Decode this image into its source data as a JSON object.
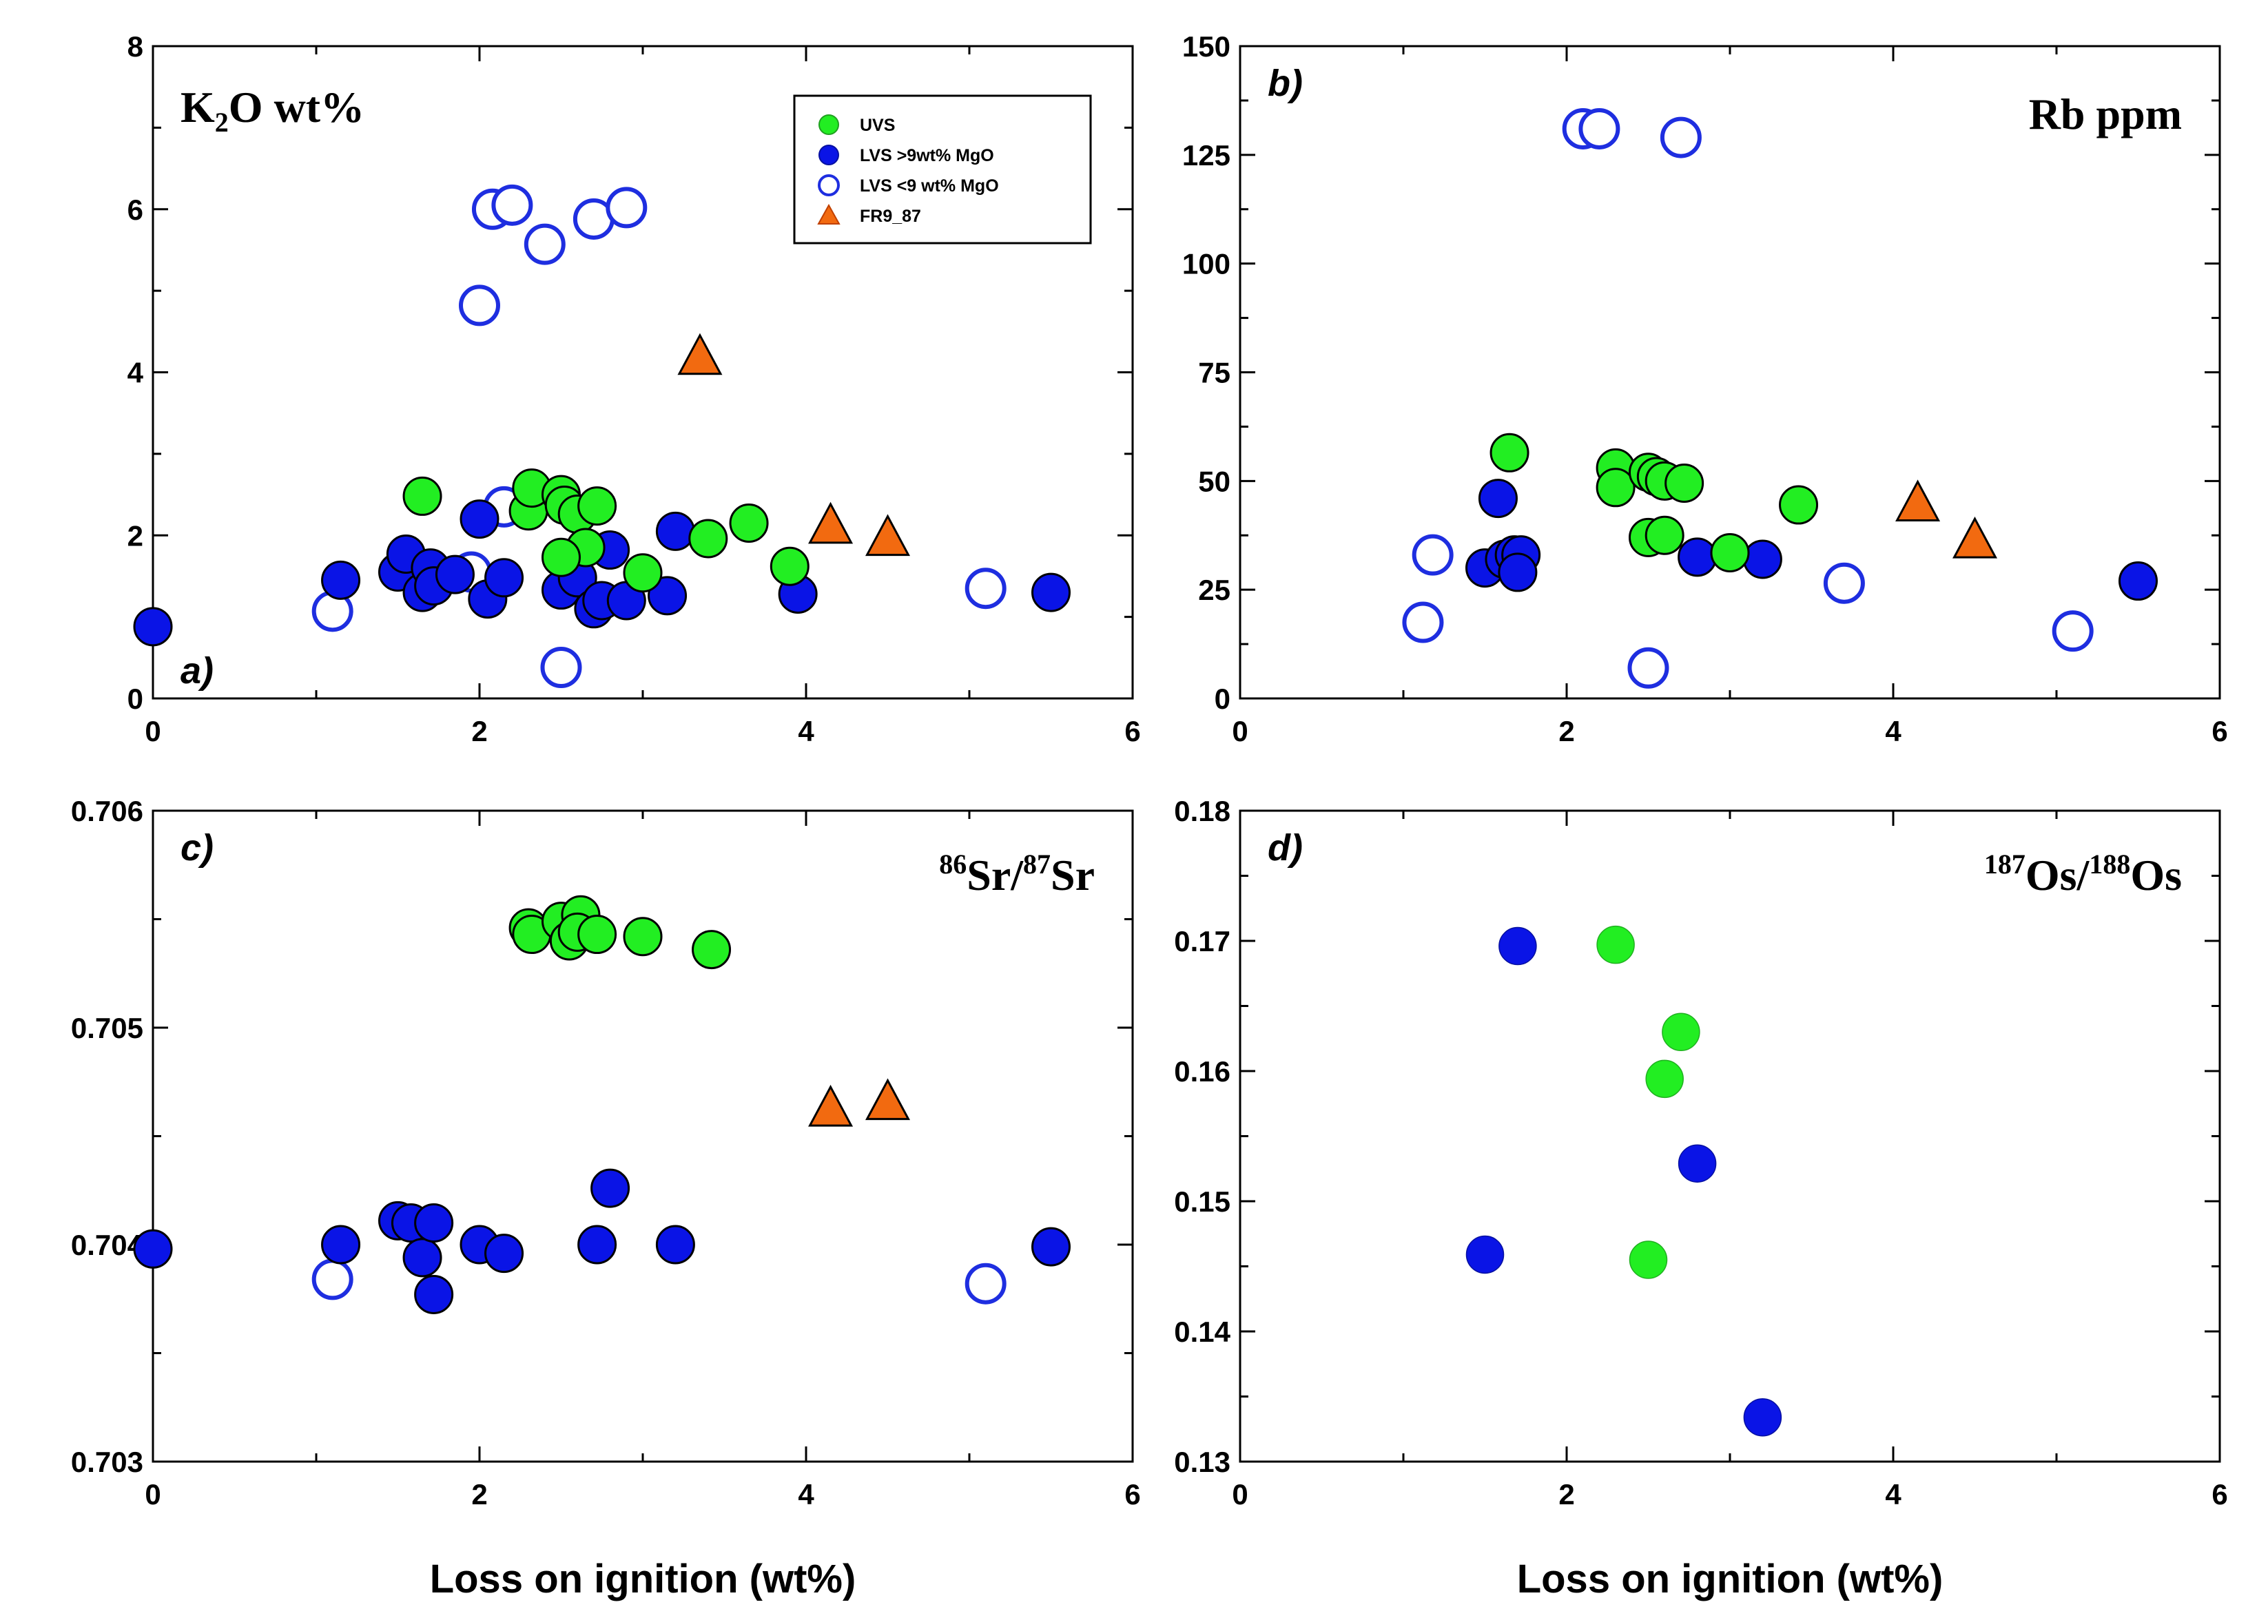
{
  "colors": {
    "uvs": "#22ee22",
    "lvs": "#0a14e6",
    "lvs_open": "#1e2ee0",
    "fr9": "#f26a10",
    "stroke": "#000000"
  },
  "legend": {
    "items": [
      "UVS",
      "LVS >9wt% MgO",
      "LVS <9 wt% MgO",
      "FR9_87"
    ]
  },
  "chart_data": [
    {
      "id": "a",
      "type": "scatter",
      "panel_label": "a)",
      "title": {
        "main": "K",
        "sub": "2",
        "rest": "O wt%"
      },
      "xlim": [
        0,
        6
      ],
      "ylim": [
        0,
        8
      ],
      "xticks": [
        0,
        2,
        4,
        6
      ],
      "yticks": [
        0,
        2,
        4,
        6,
        8
      ],
      "ytick_labels": [
        "0",
        "2",
        "4",
        "6",
        "8"
      ],
      "xlabel": "",
      "series": [
        {
          "name": "LVS <9 wt% MgO",
          "marker": "open-circle",
          "points": [
            [
              1.1,
              1.07
            ],
            [
              2.0,
              4.82
            ],
            [
              2.08,
              6.0
            ],
            [
              2.2,
              6.05
            ],
            [
              2.4,
              5.57
            ],
            [
              2.7,
              5.88
            ],
            [
              2.9,
              6.02
            ],
            [
              2.15,
              2.35
            ],
            [
              1.95,
              1.55
            ],
            [
              2.5,
              0.38
            ],
            [
              5.1,
              1.35
            ]
          ]
        },
        {
          "name": "LVS >9wt% MgO",
          "marker": "filled-circle",
          "points": [
            [
              0,
              0.88
            ],
            [
              1.15,
              1.45
            ],
            [
              1.5,
              1.55
            ],
            [
              1.55,
              1.77
            ],
            [
              1.65,
              1.3
            ],
            [
              1.7,
              1.6
            ],
            [
              1.72,
              1.38
            ],
            [
              1.85,
              1.52
            ],
            [
              2.0,
              2.2
            ],
            [
              2.05,
              1.22
            ],
            [
              2.15,
              1.48
            ],
            [
              2.5,
              1.33
            ],
            [
              2.6,
              1.48
            ],
            [
              2.7,
              1.1
            ],
            [
              2.75,
              1.2
            ],
            [
              2.8,
              1.82
            ],
            [
              2.9,
              1.2
            ],
            [
              3.15,
              1.26
            ],
            [
              3.2,
              2.05
            ],
            [
              3.95,
              1.28
            ],
            [
              5.5,
              1.3
            ]
          ]
        },
        {
          "name": "UVS",
          "marker": "filled-circle",
          "points": [
            [
              1.65,
              2.48
            ],
            [
              2.3,
              2.3
            ],
            [
              2.32,
              2.58
            ],
            [
              2.5,
              2.5
            ],
            [
              2.52,
              2.37
            ],
            [
              2.6,
              2.26
            ],
            [
              2.65,
              1.85
            ],
            [
              2.72,
              2.36
            ],
            [
              2.5,
              1.73
            ],
            [
              3.0,
              1.54
            ],
            [
              3.4,
              1.96
            ],
            [
              3.65,
              2.15
            ],
            [
              3.9,
              1.62
            ]
          ]
        },
        {
          "name": "FR9_87",
          "marker": "triangle",
          "points": [
            [
              3.35,
              4.17
            ],
            [
              4.15,
              2.1
            ],
            [
              4.5,
              1.95
            ]
          ]
        }
      ]
    },
    {
      "id": "b",
      "type": "scatter",
      "panel_label": "b)",
      "title": {
        "main": "Rb ppm"
      },
      "xlim": [
        0,
        6
      ],
      "ylim": [
        0,
        150
      ],
      "xticks": [
        0,
        2,
        4,
        6
      ],
      "yticks": [
        0,
        25,
        50,
        75,
        100,
        125,
        150
      ],
      "ytick_labels": [
        "0",
        "25",
        "50",
        "75",
        "100",
        "125",
        "150"
      ],
      "xlabel": "",
      "series": [
        {
          "name": "LVS <9 wt% MgO",
          "marker": "open-circle",
          "points": [
            [
              2.1,
              131
            ],
            [
              2.2,
              131
            ],
            [
              2.7,
              129
            ],
            [
              1.18,
              33
            ],
            [
              1.12,
              17.5
            ],
            [
              2.5,
              7
            ],
            [
              3.7,
              26.5
            ],
            [
              5.1,
              15.5
            ]
          ]
        },
        {
          "name": "LVS >9wt% MgO",
          "marker": "filled-circle",
          "points": [
            [
              1.58,
              46
            ],
            [
              1.5,
              30
            ],
            [
              1.62,
              32
            ],
            [
              1.68,
              33
            ],
            [
              1.72,
              33
            ],
            [
              1.7,
              29
            ],
            [
              2.8,
              32.5
            ],
            [
              3.2,
              32
            ],
            [
              5.5,
              27
            ]
          ]
        },
        {
          "name": "UVS",
          "marker": "filled-circle",
          "points": [
            [
              1.65,
              56.5
            ],
            [
              2.3,
              53
            ],
            [
              2.3,
              48.5
            ],
            [
              2.5,
              52
            ],
            [
              2.55,
              51
            ],
            [
              2.6,
              50
            ],
            [
              2.72,
              49.5
            ],
            [
              2.5,
              37
            ],
            [
              2.6,
              37.5
            ],
            [
              3.0,
              33.5
            ],
            [
              3.42,
              44.5
            ]
          ]
        },
        {
          "name": "FR9_87",
          "marker": "triangle",
          "points": [
            [
              4.15,
              44.5
            ],
            [
              4.5,
              36
            ]
          ]
        }
      ]
    },
    {
      "id": "c",
      "type": "scatter",
      "panel_label": "c)",
      "title": {
        "sup1": "86",
        "main1": "Sr/",
        "sup2": "87",
        "main2": "Sr"
      },
      "xlim": [
        0,
        6
      ],
      "ylim": [
        0.703,
        0.706
      ],
      "xticks": [
        0,
        2,
        4,
        6
      ],
      "yticks": [
        0.703,
        0.704,
        0.705,
        0.706
      ],
      "ytick_labels": [
        "0.703",
        "0.704",
        "0.705",
        "0.706"
      ],
      "xlabel": "Loss on ignition (wt%)",
      "series": [
        {
          "name": "LVS <9 wt% MgO",
          "marker": "open-circle",
          "points": [
            [
              1.1,
              0.70384
            ],
            [
              5.1,
              0.70382
            ]
          ]
        },
        {
          "name": "LVS >9wt% MgO",
          "marker": "filled-circle",
          "points": [
            [
              0,
              0.70398
            ],
            [
              1.15,
              0.704
            ],
            [
              1.5,
              0.70411
            ],
            [
              1.58,
              0.7041
            ],
            [
              1.65,
              0.70394
            ],
            [
              1.72,
              0.70377
            ],
            [
              1.72,
              0.7041
            ],
            [
              2.0,
              0.704
            ],
            [
              2.15,
              0.70396
            ],
            [
              2.72,
              0.704
            ],
            [
              2.8,
              0.70426
            ],
            [
              3.2,
              0.704
            ],
            [
              5.5,
              0.70399
            ]
          ]
        },
        {
          "name": "UVS",
          "marker": "filled-circle",
          "points": [
            [
              2.3,
              0.70546
            ],
            [
              2.32,
              0.70543
            ],
            [
              2.5,
              0.70549
            ],
            [
              2.55,
              0.7054
            ],
            [
              2.62,
              0.70552
            ],
            [
              2.6,
              0.70544
            ],
            [
              2.72,
              0.70543
            ],
            [
              3.0,
              0.70542
            ],
            [
              3.42,
              0.70536
            ]
          ]
        },
        {
          "name": "FR9_87",
          "marker": "triangle",
          "points": [
            [
              4.15,
              0.70462
            ],
            [
              4.5,
              0.70465
            ]
          ]
        }
      ]
    },
    {
      "id": "d",
      "type": "scatter",
      "panel_label": "d)",
      "title": {
        "sup1": "187",
        "main1": "Os/",
        "sup2": "188",
        "main2": "Os"
      },
      "xlim": [
        0,
        6
      ],
      "ylim": [
        0.13,
        0.18
      ],
      "xticks": [
        0,
        2,
        4,
        6
      ],
      "yticks": [
        0.13,
        0.14,
        0.15,
        0.16,
        0.17,
        0.18
      ],
      "ytick_labels": [
        "0.13",
        "0.14",
        "0.15",
        "0.16",
        "0.17",
        "0.18"
      ],
      "xlabel": "Loss on ignition (wt%)",
      "series": [
        {
          "name": "LVS >9wt% MgO",
          "marker": "filled-circle-nostroke",
          "points": [
            [
              1.7,
              0.1696
            ],
            [
              1.5,
              0.1459
            ],
            [
              2.8,
              0.1529
            ],
            [
              3.2,
              0.1334
            ]
          ]
        },
        {
          "name": "UVS",
          "marker": "filled-circle-nostroke",
          "points": [
            [
              2.3,
              0.1697
            ],
            [
              2.7,
              0.163
            ],
            [
              2.6,
              0.1594
            ],
            [
              2.5,
              0.1455
            ]
          ]
        }
      ]
    }
  ]
}
